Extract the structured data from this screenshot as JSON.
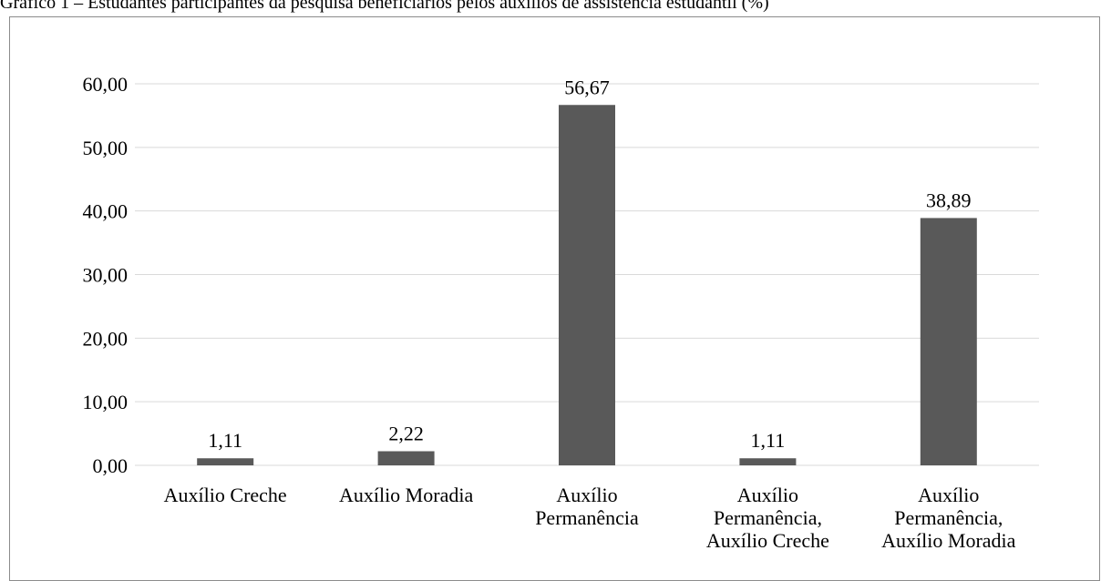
{
  "title": "Gráfico 1 – Estudantes participantes da pesquisa beneficiários pelos auxílios de assistência estudantil (%)",
  "chart_data": {
    "type": "bar",
    "title": "Gráfico 1 – Estudantes participantes da pesquisa beneficiários pelos auxílios de assistência estudantil (%)",
    "categories": [
      [
        "Auxílio Creche"
      ],
      [
        "Auxílio Moradia"
      ],
      [
        "Auxílio",
        "Permanência"
      ],
      [
        "Auxílio",
        "Permanência,",
        "Auxílio Creche"
      ],
      [
        "Auxílio",
        "Permanência,",
        "Auxílio Moradia"
      ]
    ],
    "values": [
      1.11,
      2.22,
      56.67,
      1.11,
      38.89
    ],
    "value_labels": [
      "1,11",
      "2,22",
      "56,67",
      "1,11",
      "38,89"
    ],
    "y_ticks": [
      0,
      10,
      20,
      30,
      40,
      50,
      60
    ],
    "y_tick_labels": [
      "0,00",
      "10,00",
      "20,00",
      "30,00",
      "40,00",
      "50,00",
      "60,00"
    ],
    "ylim": [
      0,
      60
    ],
    "grid": true,
    "bar_color": "#595959",
    "grid_color": "#d9d9d9"
  }
}
